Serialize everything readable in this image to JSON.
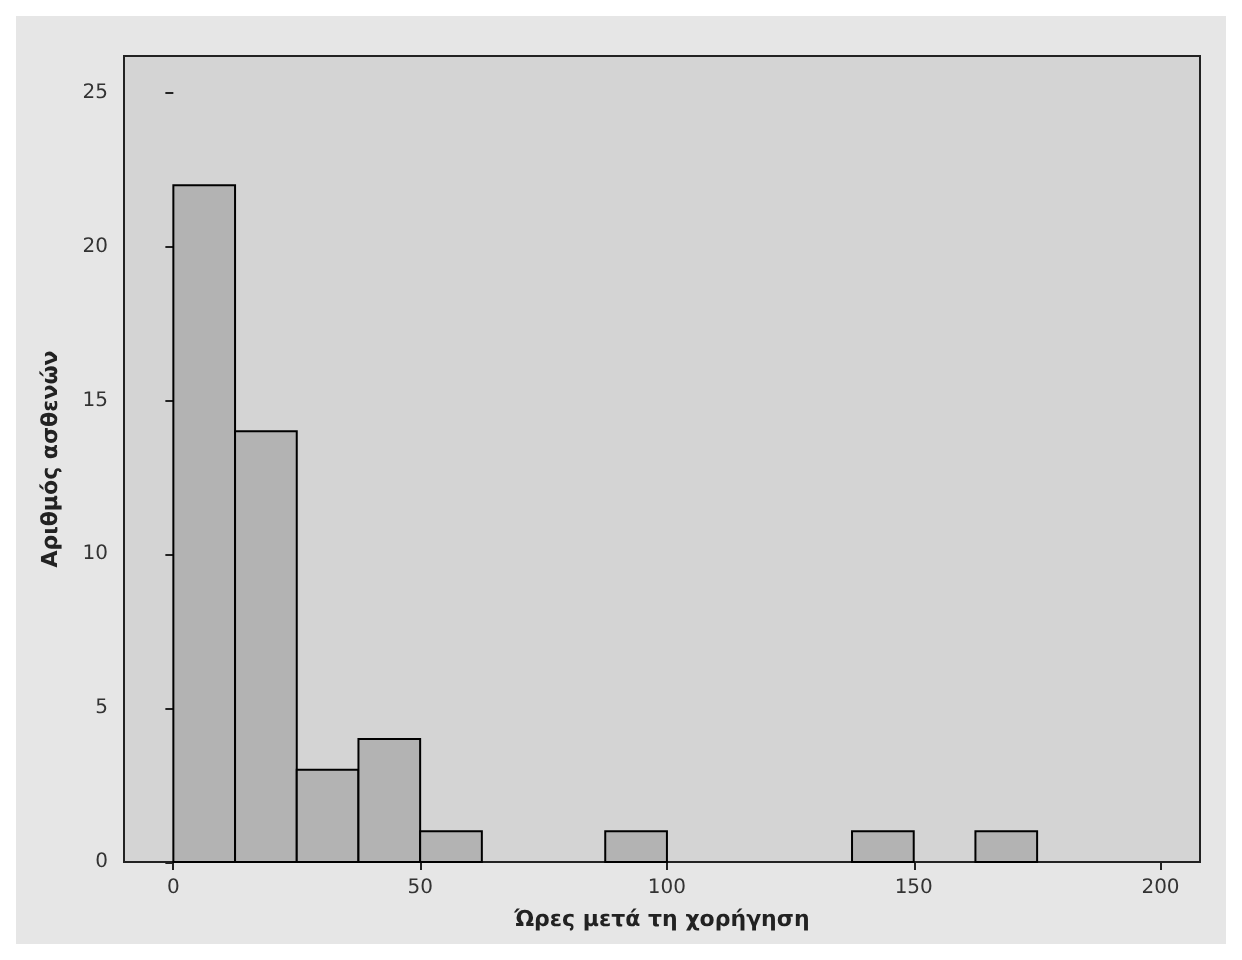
{
  "chart_data": {
    "type": "histogram",
    "xlabel": "Ώρες μετά τη χορήγηση",
    "ylabel": "Αριθμός ασθενών",
    "bins": [
      0,
      12.5,
      25,
      37.5,
      50,
      62.5,
      75,
      87.5,
      100,
      112.5,
      125,
      137.5,
      150,
      162.5,
      175
    ],
    "values": [
      22,
      14,
      3,
      4,
      1,
      0,
      0,
      1,
      0,
      0,
      0,
      1,
      0,
      1
    ],
    "color": "#b3b3b3",
    "xlim": [
      -10,
      208
    ],
    "xticks": [
      0,
      50,
      100,
      150,
      200
    ],
    "ylim": [
      0,
      26.2
    ],
    "yticks": [
      0,
      5,
      10,
      15,
      20,
      25
    ],
    "grid": false
  }
}
